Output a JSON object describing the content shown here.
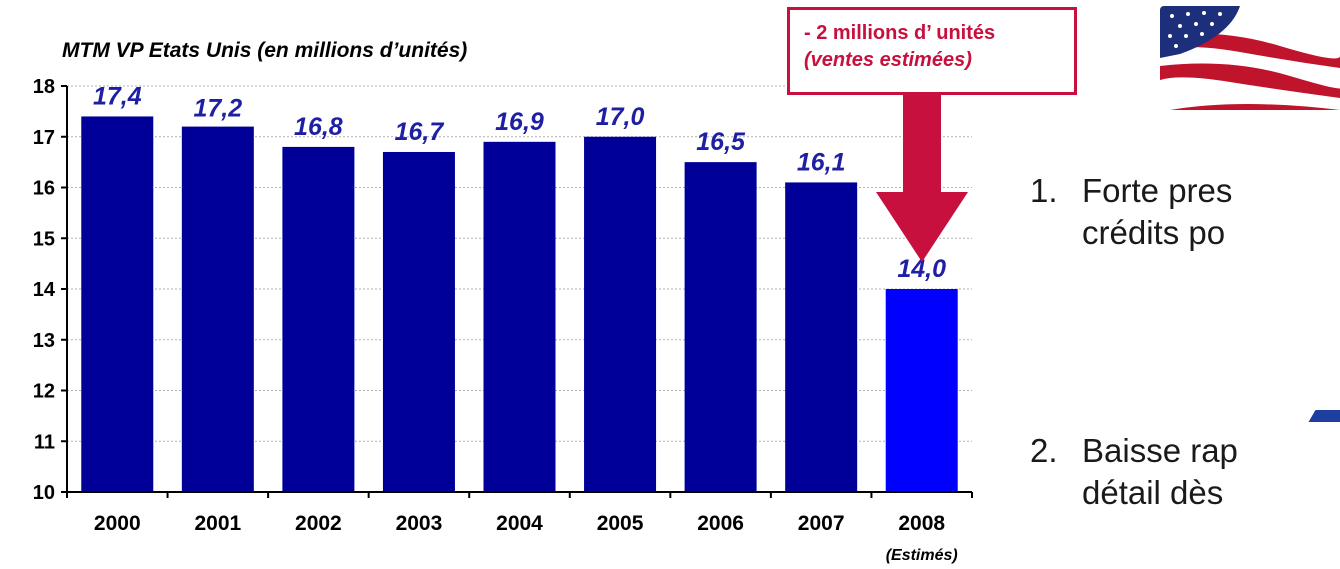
{
  "chart_data": {
    "type": "bar",
    "title": "MTM VP Etats Unis (en millions d’unités)",
    "categories": [
      "2000",
      "2001",
      "2002",
      "2003",
      "2004",
      "2005",
      "2006",
      "2007",
      "2008"
    ],
    "category_note": {
      "index": 8,
      "text": "(Estimés)"
    },
    "values": [
      17.4,
      17.2,
      16.8,
      16.7,
      16.9,
      17.0,
      16.5,
      16.1,
      14.0
    ],
    "value_labels": [
      "17,4",
      "17,2",
      "16,8",
      "16,7",
      "16,9",
      "17,0",
      "16,5",
      "16,1",
      "14,0"
    ],
    "ylim": [
      10,
      18
    ],
    "yticks": [
      "10",
      "11",
      "12",
      "13",
      "14",
      "15",
      "16",
      "17",
      "18"
    ],
    "grid": true,
    "colors": {
      "bar": "#000099",
      "bar_estimated": "#0000ff",
      "label": "#1f1fa3",
      "arrow": "#c8103e",
      "grid": "#b0b0b0"
    }
  },
  "callout": {
    "line1": "- 2 millions d’ unités",
    "line2": "(ventes estimées)"
  },
  "bullets": [
    {
      "num": "1.",
      "line1": "Forte pres",
      "line2": "crédits po"
    },
    {
      "num": "2.",
      "line1": "Baisse rap",
      "line2": "détail dès"
    }
  ],
  "decor": {
    "flag_icon": "us-flag-icon"
  }
}
